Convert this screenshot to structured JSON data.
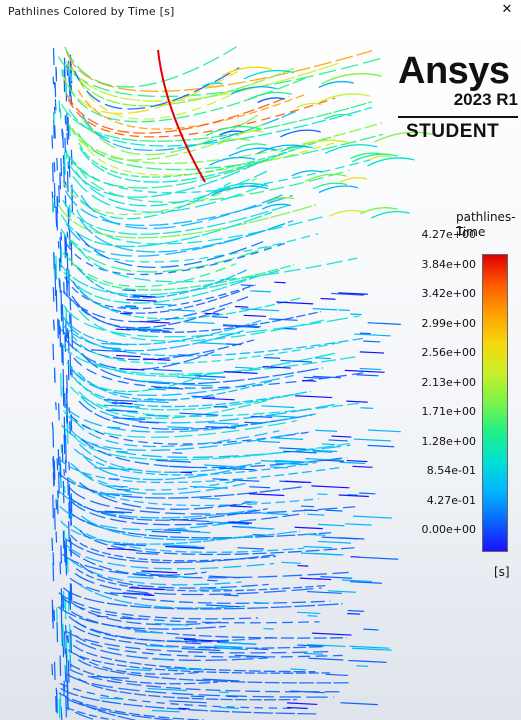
{
  "window": {
    "title": "Pathlines Colored by Time [s]"
  },
  "logo": {
    "word": "Ansys",
    "version": "2023 R1",
    "edition": "STUDENT"
  },
  "legend": {
    "title": "pathlines-1",
    "subtitle": "Time",
    "unit": "[s]",
    "ticks": [
      "4.27e+00",
      "3.84e+00",
      "3.42e+00",
      "2.99e+00",
      "2.56e+00",
      "2.13e+00",
      "1.71e+00",
      "1.28e+00",
      "8.54e-01",
      "4.27e-01",
      "0.00e+00"
    ],
    "colormap": [
      "#1a10ff",
      "#0a64ff",
      "#00b4ff",
      "#00e0d6",
      "#1ff08a",
      "#7af24a",
      "#c8f028",
      "#f6d80e",
      "#ffa000",
      "#ff5a00",
      "#e00000"
    ]
  },
  "colors": {
    "background_top": "#ffffff",
    "background_bottom": "#dfe4ec"
  }
}
